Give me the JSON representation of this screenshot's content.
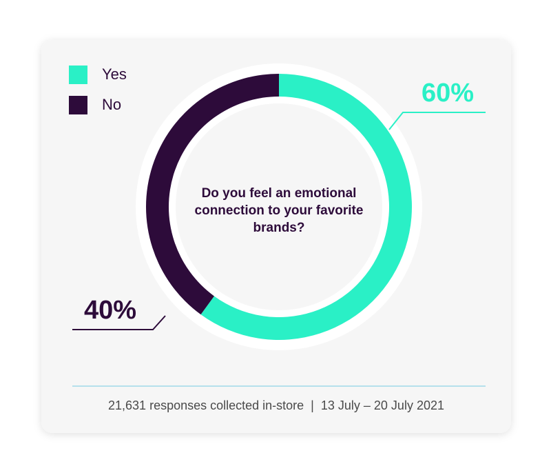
{
  "chart_data": {
    "type": "donut",
    "title": "Do you feel an emotional connection to your favorite brands?",
    "categories": [
      "Yes",
      "No"
    ],
    "values": [
      60,
      40
    ],
    "value_labels": [
      "60%",
      "40%"
    ],
    "colors": [
      "#2af0c6",
      "#2d0b3a"
    ],
    "legend": "top-left",
    "note": "21,631 responses collected in-store  |  13 July – 20 July 2021"
  }
}
